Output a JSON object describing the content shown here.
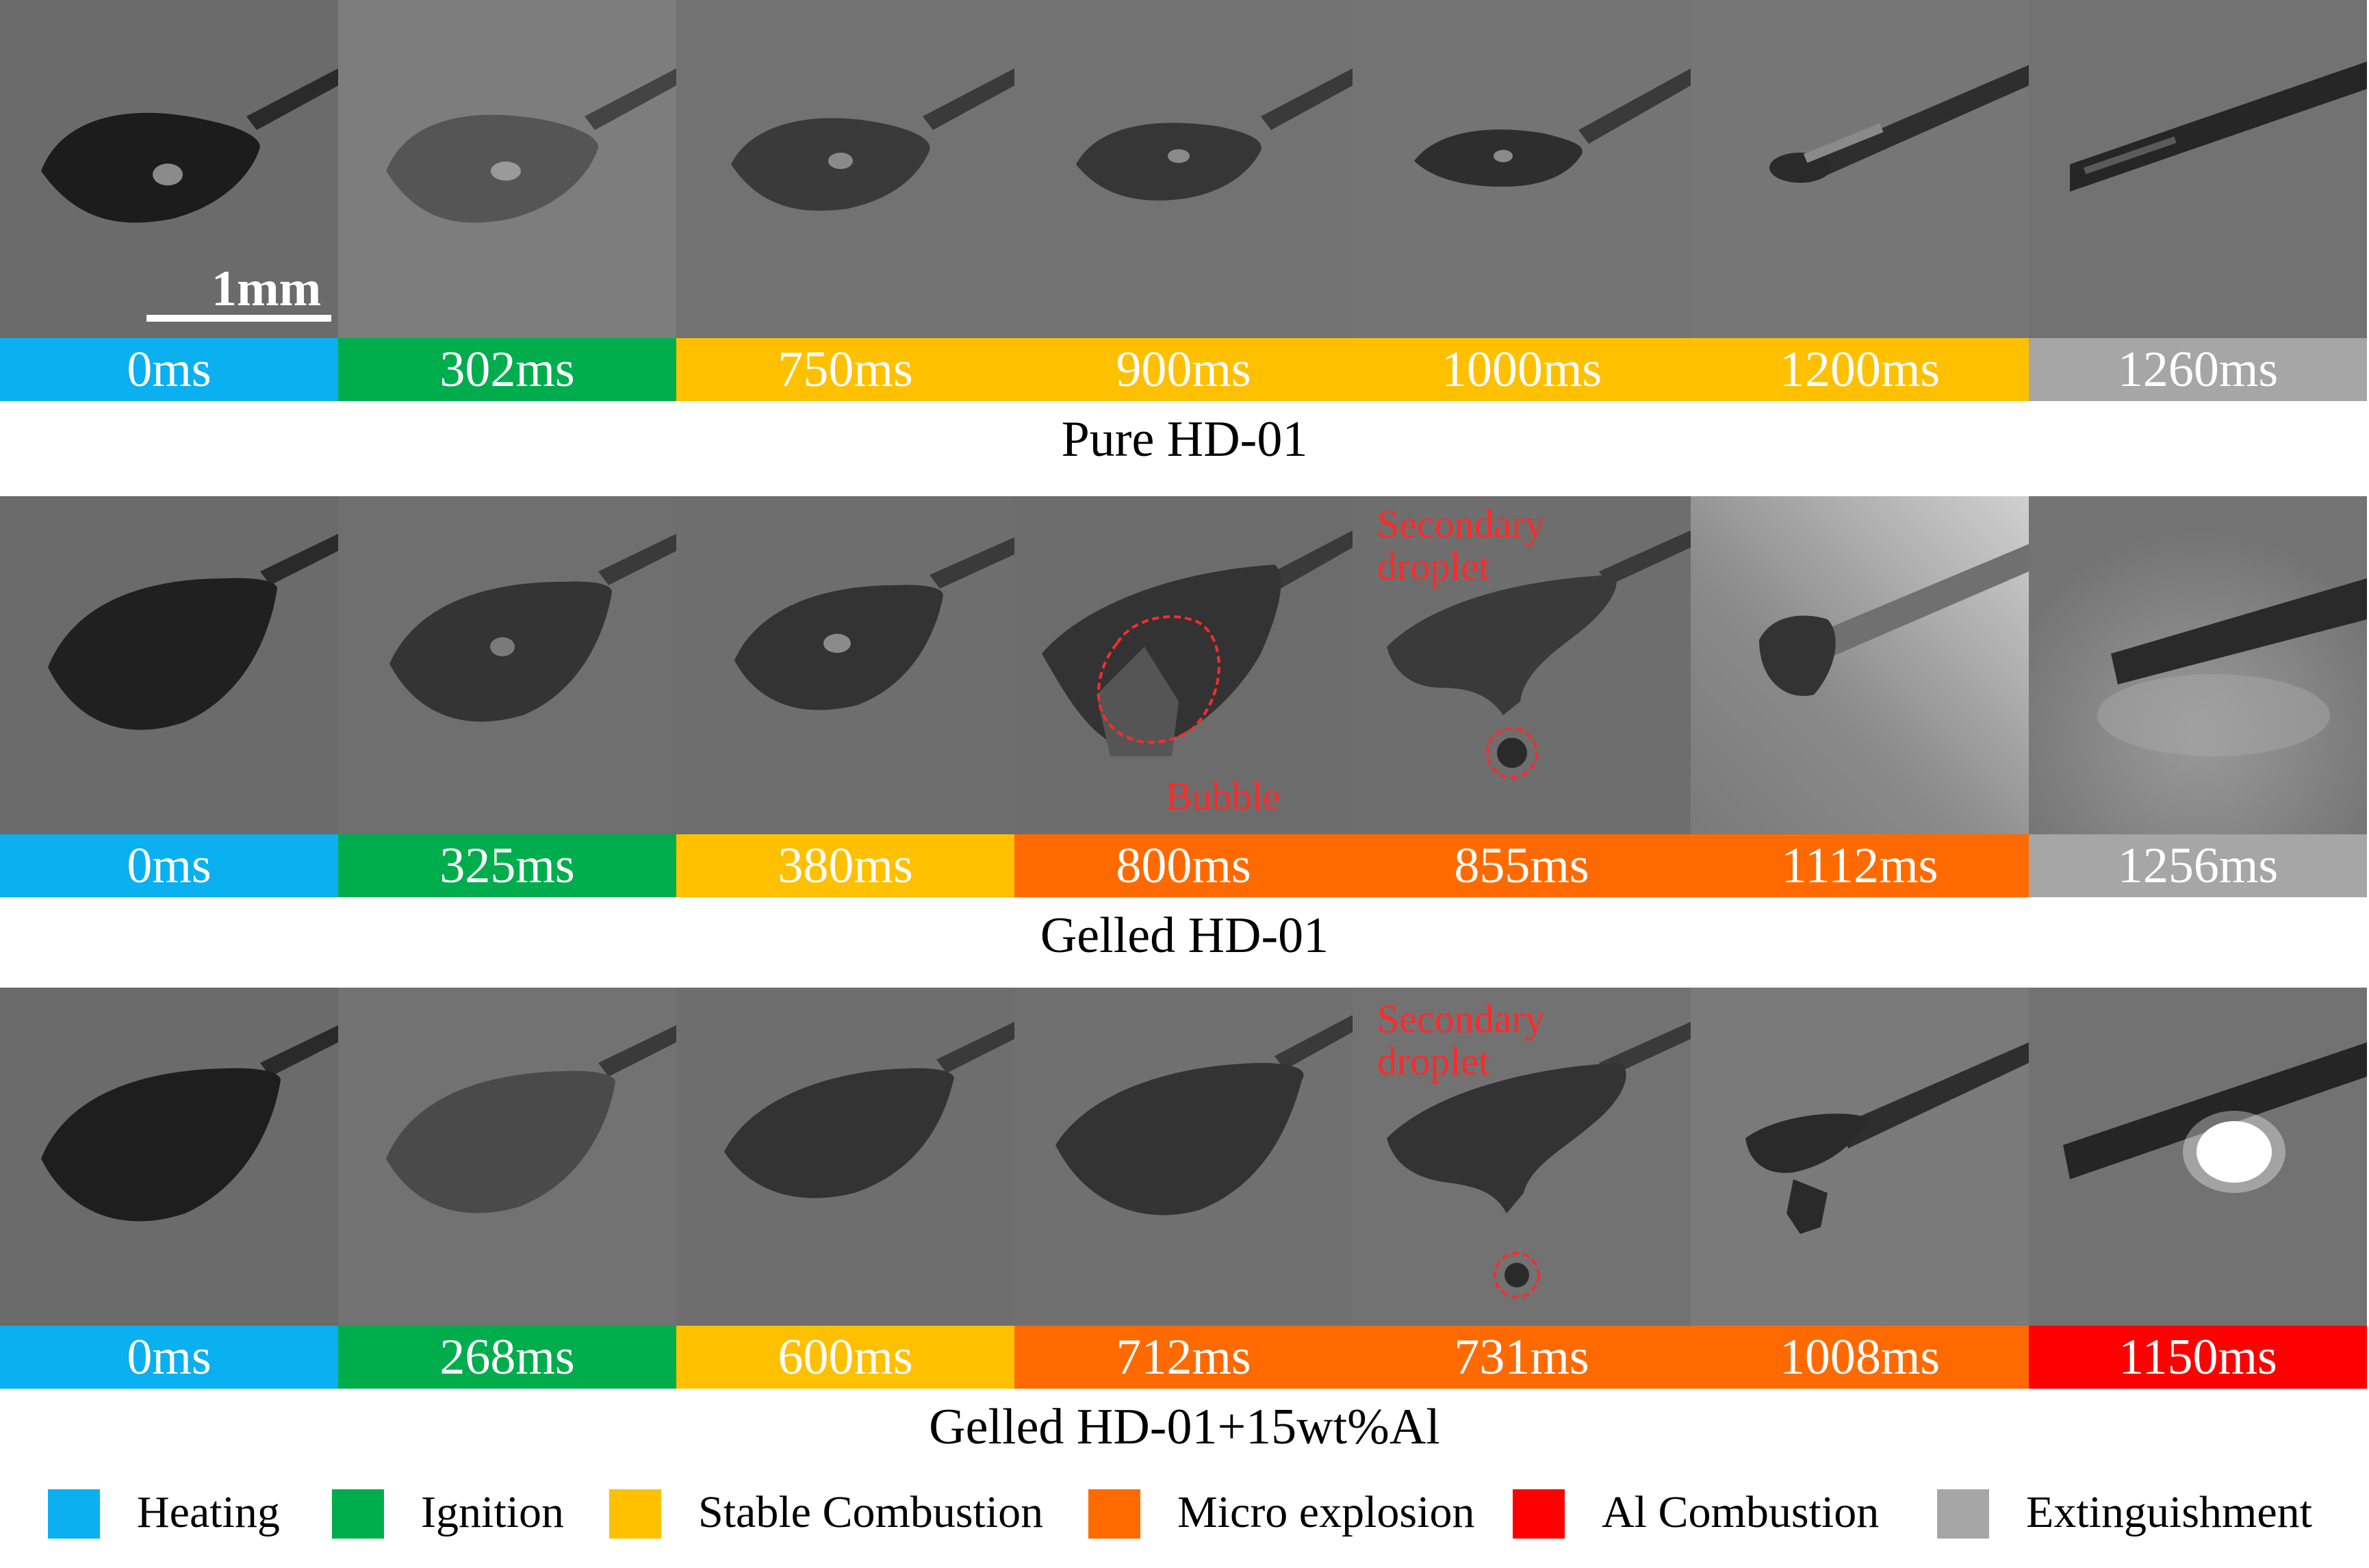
{
  "phase_colors": {
    "heating": "#0ab0ef",
    "ignition": "#00ad4d",
    "stable_combustion": "#ffc000",
    "micro_explosion": "#ff6a00",
    "al_combustion": "#ff0000",
    "extinguishment": "#a6a6a6"
  },
  "scale_bar": {
    "label": "1mm"
  },
  "rows": [
    {
      "caption": "Pure HD-01",
      "frames": [
        {
          "time": "0ms",
          "phase": "heating"
        },
        {
          "time": "302ms",
          "phase": "ignition"
        },
        {
          "time": "750ms",
          "phase": "stable_combustion"
        },
        {
          "time": "900ms",
          "phase": "stable_combustion"
        },
        {
          "time": "1000ms",
          "phase": "stable_combustion"
        },
        {
          "time": "1200ms",
          "phase": "stable_combustion"
        },
        {
          "time": "1260ms",
          "phase": "extinguishment"
        }
      ]
    },
    {
      "caption": "Gelled HD-01",
      "frames": [
        {
          "time": "0ms",
          "phase": "heating"
        },
        {
          "time": "325ms",
          "phase": "ignition"
        },
        {
          "time": "380ms",
          "phase": "stable_combustion"
        },
        {
          "time": "800ms",
          "phase": "micro_explosion"
        },
        {
          "time": "855ms",
          "phase": "micro_explosion"
        },
        {
          "time": "1112ms",
          "phase": "micro_explosion"
        },
        {
          "time": "1256ms",
          "phase": "extinguishment"
        }
      ],
      "annotations": {
        "secondary_line1": "Secondary",
        "secondary_line2": "droplet",
        "bubble": "Bubble"
      }
    },
    {
      "caption": "Gelled HD-01+15wt%Al",
      "frames": [
        {
          "time": "0ms",
          "phase": "heating"
        },
        {
          "time": "268ms",
          "phase": "ignition"
        },
        {
          "time": "600ms",
          "phase": "stable_combustion"
        },
        {
          "time": "712ms",
          "phase": "micro_explosion"
        },
        {
          "time": "731ms",
          "phase": "micro_explosion"
        },
        {
          "time": "1008ms",
          "phase": "micro_explosion"
        },
        {
          "time": "1150ms",
          "phase": "al_combustion"
        }
      ],
      "annotations": {
        "secondary_line1": "Secondary",
        "secondary_line2": "droplet"
      }
    }
  ],
  "legend": [
    {
      "label": "Heating",
      "phase": "heating"
    },
    {
      "label": "Ignition",
      "phase": "ignition"
    },
    {
      "label": "Stable Combustion",
      "phase": "stable_combustion"
    },
    {
      "label": "Micro explosion",
      "phase": "micro_explosion"
    },
    {
      "label": "Al Combustion",
      "phase": "al_combustion"
    },
    {
      "label": "Extinguishment",
      "phase": "extinguishment"
    }
  ]
}
